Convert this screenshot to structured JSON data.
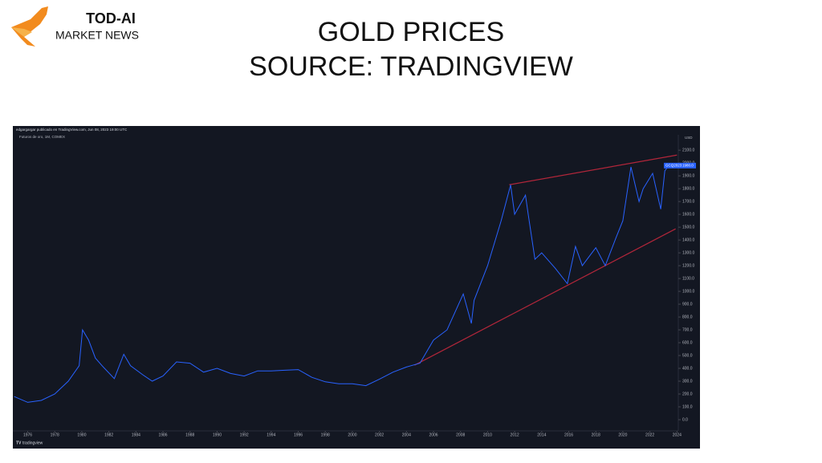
{
  "logo": {
    "name": "TOD-AI",
    "tagline": "MARKET NEWS"
  },
  "chart_data": {
    "type": "line",
    "title": "GOLD PRICES",
    "subtitle": "SOURCE: TRADINGVIEW",
    "annotations": [
      "edgargargar publicado en TradingView.com, Jun 08, 2023 19:00 UTC",
      "Futuros de oro, 1M, COMEX"
    ],
    "y_unit": "USD",
    "footer": "tradingview",
    "color": "#2962ff",
    "background": "#131722",
    "x": [
      1975,
      1976,
      1977,
      1978,
      1979,
      1979.8,
      1980.05,
      1980.5,
      1981,
      1981.5,
      1982.4,
      1983.1,
      1983.6,
      1984.5,
      1985.2,
      1986,
      1987,
      1988,
      1989,
      1990,
      1991,
      1992,
      1993,
      1994,
      1995,
      1996,
      1997,
      1998,
      1999,
      2000,
      2001,
      2002,
      2003,
      2004,
      2005,
      2006,
      2007,
      2008.2,
      2008.8,
      2009,
      2010,
      2011,
      2011.7,
      2012,
      2012.8,
      2013,
      2013.5,
      2014,
      2015,
      2015.9,
      2016.5,
      2017,
      2018,
      2018.7,
      2019.5,
      2020,
      2020.6,
      2021.2,
      2021.5,
      2022.2,
      2022.8,
      2023.1,
      2023.4
    ],
    "values": [
      180,
      135,
      150,
      200,
      300,
      420,
      700,
      620,
      480,
      420,
      320,
      510,
      420,
      350,
      300,
      340,
      450,
      440,
      370,
      400,
      360,
      340,
      380,
      380,
      385,
      390,
      330,
      295,
      280,
      280,
      265,
      315,
      370,
      410,
      440,
      620,
      700,
      980,
      750,
      930,
      1200,
      1550,
      1830,
      1600,
      1750,
      1600,
      1250,
      1300,
      1180,
      1060,
      1350,
      1200,
      1340,
      1200,
      1420,
      1550,
      1970,
      1700,
      1800,
      1920,
      1640,
      1940,
      1980
    ],
    "trendlines": [
      {
        "x": [
          2011.6,
          2024
        ],
        "values": [
          1831,
          2062
        ]
      },
      {
        "x": [
          2004.6,
          2023.9
        ],
        "values": [
          425,
          1487
        ]
      }
    ],
    "trendline_color": "#b2263a",
    "price_tag": {
      "symbol": "GCQ2023",
      "value": 1980,
      "label": "1980.0"
    },
    "xlim": [
      1974.9,
      2024.1
    ],
    "ylim": [
      -75,
      2220
    ],
    "xticks": [
      1976,
      1978,
      1980,
      1982,
      1984,
      1986,
      1988,
      1990,
      1992,
      1994,
      1996,
      1998,
      2000,
      2002,
      2004,
      2006,
      2008,
      2010,
      2012,
      2014,
      2016,
      2018,
      2020,
      2022,
      2024
    ],
    "yticks": [
      {
        "value": 0,
        "label": "0.0"
      },
      {
        "value": 100,
        "label": "100.0"
      },
      {
        "value": 200,
        "label": "200.0"
      },
      {
        "value": 300,
        "label": "300.0"
      },
      {
        "value": 400,
        "label": "400.0"
      },
      {
        "value": 500,
        "label": "500.0"
      },
      {
        "value": 600,
        "label": "600.0"
      },
      {
        "value": 700,
        "label": "700.0"
      },
      {
        "value": 800,
        "label": "800.0"
      },
      {
        "value": 900,
        "label": "900.0"
      },
      {
        "value": 1000,
        "label": "1000.0"
      },
      {
        "value": 1100,
        "label": "1100.0"
      },
      {
        "value": 1200,
        "label": "1200.0"
      },
      {
        "value": 1300,
        "label": "1300.0"
      },
      {
        "value": 1400,
        "label": "1400.0"
      },
      {
        "value": 1500,
        "label": "1500.0"
      },
      {
        "value": 1600,
        "label": "1600.0"
      },
      {
        "value": 1700,
        "label": "1700.0"
      },
      {
        "value": 1800,
        "label": "1800.0"
      },
      {
        "value": 1900,
        "label": "1900.0"
      },
      {
        "value": 2000,
        "label": "2000.0"
      },
      {
        "value": 2100,
        "label": "2100.0"
      }
    ],
    "grid": false
  }
}
